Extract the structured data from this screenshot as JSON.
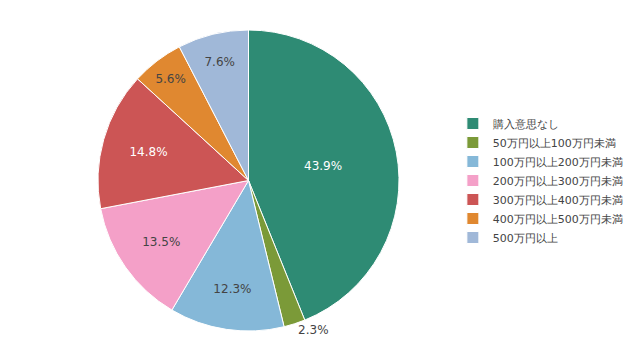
{
  "chart_data": {
    "type": "pie",
    "categories": [
      "購入意思なし",
      "50万円以上100万円未満",
      "100万円以上200万円未満",
      "200万円以上300万円未満",
      "300万円以上400万円未満",
      "400万円以上500万円未満",
      "500万円以上"
    ],
    "values": [
      43.9,
      2.3,
      12.3,
      13.5,
      14.8,
      5.6,
      7.6
    ],
    "value_labels": [
      "43.9%",
      "2.3%",
      "12.3%",
      "13.5%",
      "14.8%",
      "5.6%",
      "7.6%"
    ],
    "colors": [
      "#2e8b74",
      "#7b9a38",
      "#85b8d8",
      "#f4a0c8",
      "#cc5555",
      "#e08830",
      "#a0b8d8"
    ],
    "data_labels": true,
    "legend": "right"
  }
}
